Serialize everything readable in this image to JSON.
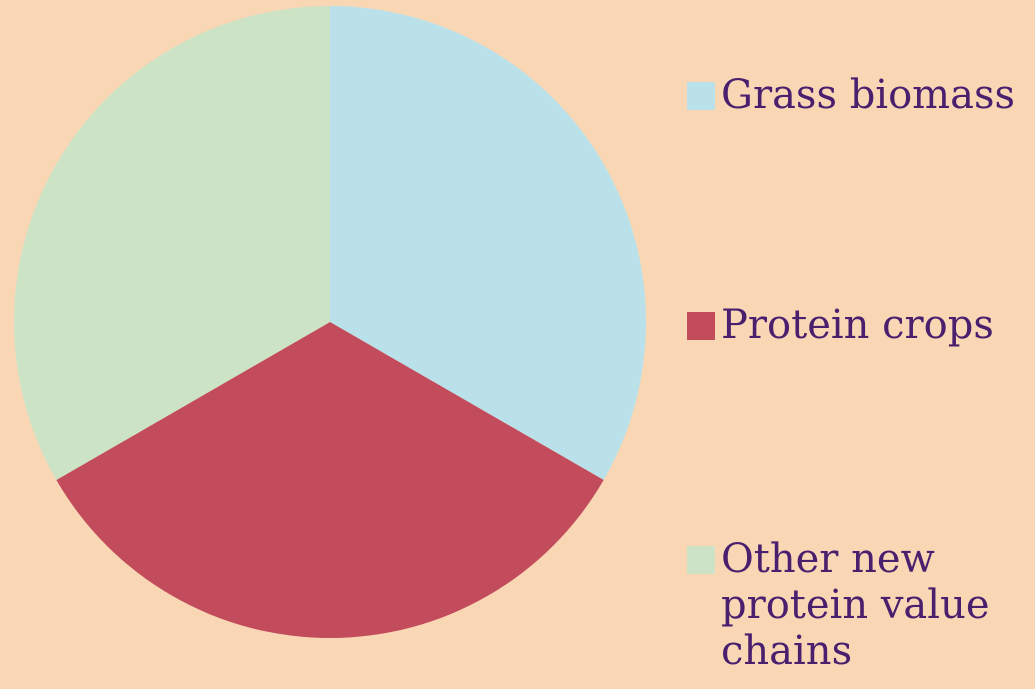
{
  "chart_data": {
    "type": "pie",
    "categories": [
      "Grass biomass",
      "Protein crops",
      "Other new protein value chains"
    ],
    "values": [
      1,
      1,
      1
    ],
    "colors": [
      "#BAE1EA",
      "#C24B5C",
      "#CDE3C6"
    ],
    "legend_position": "right"
  },
  "colors": {
    "background": "#F9D7B5",
    "legend_text": "#4A1F6E"
  }
}
